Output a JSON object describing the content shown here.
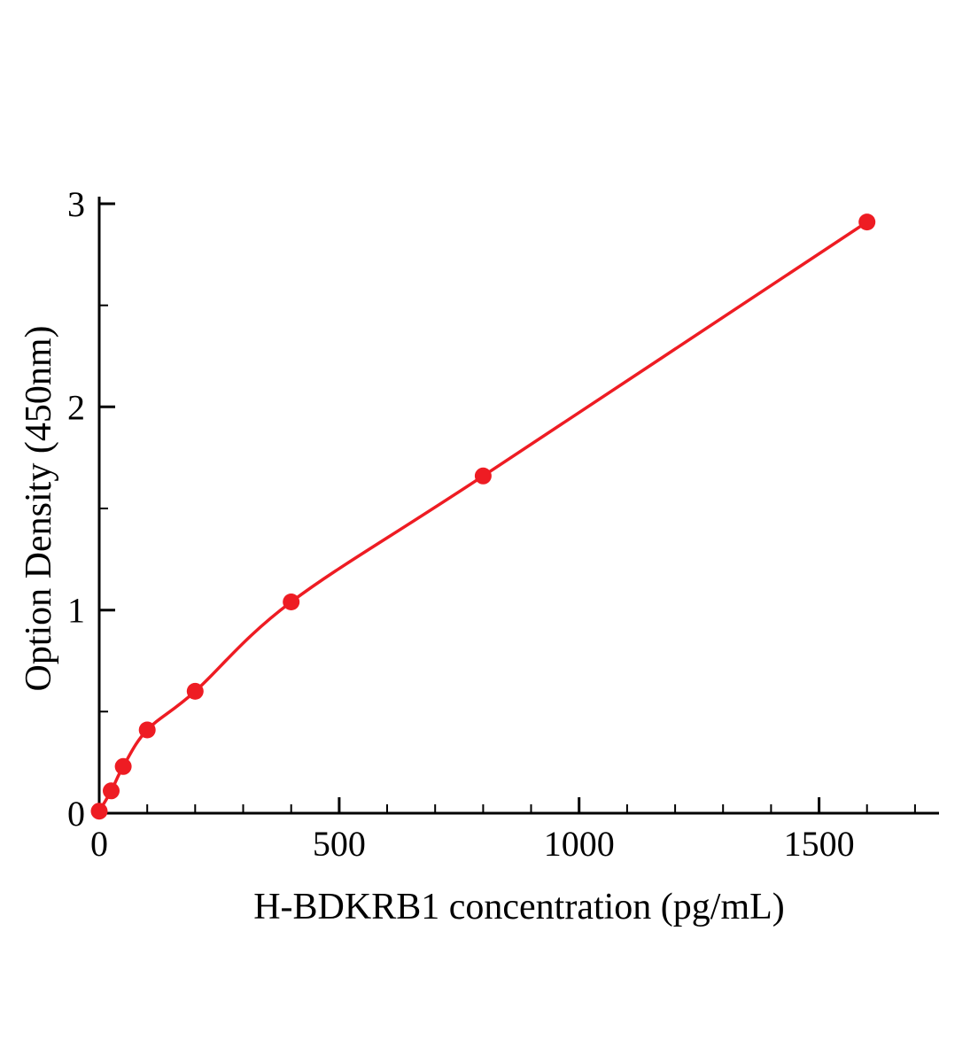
{
  "chart": {
    "accent_color": "#ee1c23",
    "axis_color": "#000000",
    "background_color": "#ffffff"
  },
  "chart_data": {
    "type": "scatter",
    "x": [
      0,
      25,
      50,
      100,
      200,
      400,
      800,
      1600
    ],
    "y": [
      0.01,
      0.11,
      0.23,
      0.41,
      0.6,
      1.04,
      1.66,
      2.91
    ],
    "title": "",
    "xlabel": "H-BDKRB1 concentration (pg/mL)",
    "ylabel": "Option Density (450nm)",
    "xlim": [
      0,
      1750
    ],
    "ylim": [
      0,
      3
    ],
    "x_major_ticks": [
      0,
      500,
      1000,
      1500
    ],
    "x_minor_step": 100,
    "y_major_ticks": [
      0,
      1,
      2,
      3
    ],
    "y_minor_step": 0.5,
    "marker": "circle",
    "line": "smooth-fit-curve",
    "grid": false,
    "legend": null
  }
}
